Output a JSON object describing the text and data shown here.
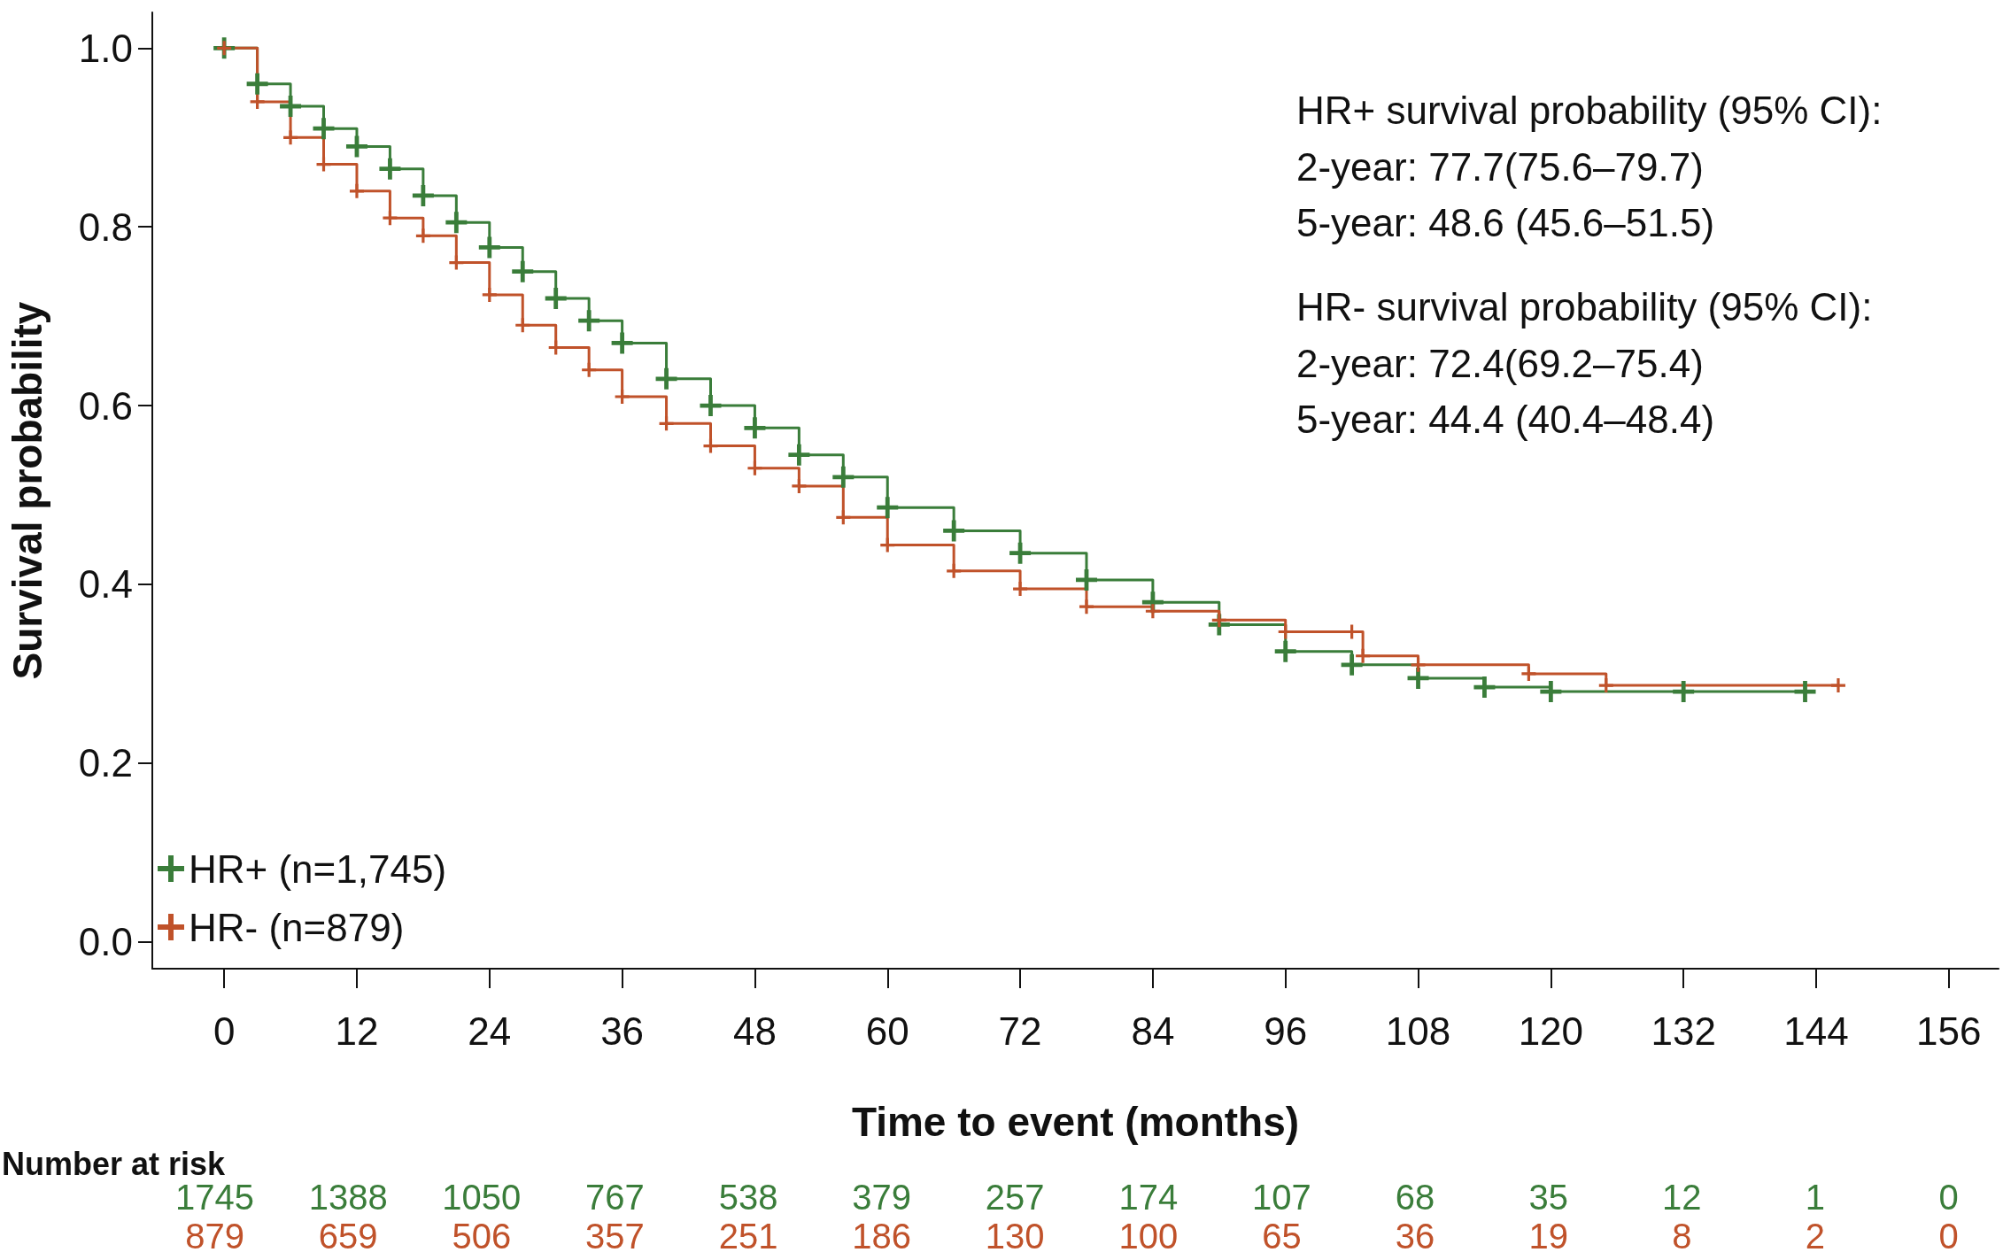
{
  "chart_data": {
    "type": "step",
    "xlabel": "Time to event (months)",
    "ylabel": "Survival probability",
    "xlim": [
      -6.5,
      160.5
    ],
    "xticks": [
      0,
      12,
      24,
      36,
      48,
      60,
      72,
      84,
      96,
      108,
      120,
      132,
      144,
      156
    ],
    "ylim": [
      -0.03,
      1.04
    ],
    "yticks": [
      {
        "value": 0,
        "label": "0.0"
      },
      0.2,
      0.4,
      0.6,
      0.8,
      {
        "value": 1,
        "label": "1.0"
      }
    ],
    "grid": false,
    "legend": "bottom left",
    "marker": "cross",
    "line_style": "solid",
    "series": [
      {
        "name": "HR+ (n=1,745)",
        "color": "#3a7d3a",
        "x": [
          0,
          3,
          6,
          9,
          12,
          15,
          18,
          21,
          24,
          27,
          30,
          33,
          36,
          40,
          44,
          48,
          52,
          56,
          60,
          66,
          72,
          78,
          84,
          90,
          96,
          102,
          108,
          114,
          120,
          132,
          143
        ],
        "values": [
          1.0,
          0.96,
          0.935,
          0.91,
          0.89,
          0.865,
          0.835,
          0.805,
          0.777,
          0.75,
          0.72,
          0.695,
          0.67,
          0.63,
          0.6,
          0.575,
          0.545,
          0.52,
          0.486,
          0.46,
          0.435,
          0.405,
          0.38,
          0.355,
          0.325,
          0.31,
          0.295,
          0.285,
          0.28,
          0.28,
          0.28
        ]
      },
      {
        "name": "HR- (n=879)",
        "color": "#c0522a",
        "x": [
          0,
          3,
          6,
          9,
          12,
          15,
          18,
          21,
          24,
          27,
          30,
          33,
          36,
          40,
          44,
          48,
          52,
          56,
          60,
          66,
          72,
          78,
          84,
          90,
          96,
          102,
          103,
          108,
          118,
          125,
          146
        ],
        "values": [
          1.0,
          0.94,
          0.9,
          0.87,
          0.84,
          0.81,
          0.79,
          0.76,
          0.724,
          0.69,
          0.665,
          0.64,
          0.61,
          0.58,
          0.555,
          0.53,
          0.51,
          0.475,
          0.444,
          0.415,
          0.395,
          0.375,
          0.37,
          0.36,
          0.347,
          0.347,
          0.32,
          0.31,
          0.3,
          0.287,
          0.287
        ]
      }
    ],
    "annotations": [
      "HR+ survival probability (95% CI):",
      "2-year: 77.7(75.6–79.7)",
      "5-year: 48.6 (45.6–51.5)",
      "HR- survival probability (95% CI):",
      "2-year: 72.4(69.2–75.4)",
      "5-year: 44.4 (40.4–48.4)",
      "Number at risk",
      "1745",
      "1388",
      "1050",
      "767",
      "538",
      "379",
      "257",
      "174",
      "107",
      "68",
      "35",
      "12",
      "1",
      "0",
      "879",
      "659",
      "506",
      "357",
      "251",
      "186",
      "130",
      "100",
      "65",
      "36",
      "19",
      "8",
      "2",
      "0"
    ]
  }
}
